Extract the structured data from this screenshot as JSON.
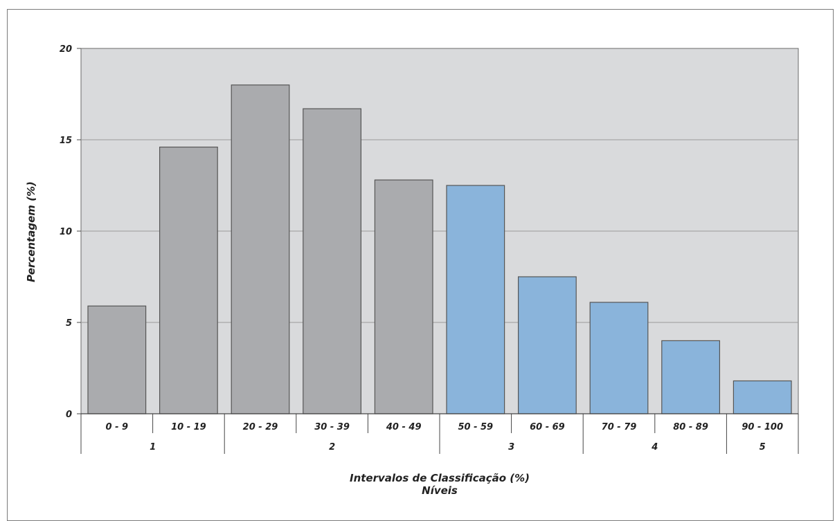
{
  "chart_data": {
    "type": "bar",
    "categories": [
      "0 - 9",
      "10 - 19",
      "20 - 29",
      "30 - 39",
      "40 - 49",
      "50 - 59",
      "60 - 69",
      "70 - 79",
      "80 - 89",
      "90 - 100"
    ],
    "values": [
      5.9,
      14.6,
      18.0,
      16.7,
      12.8,
      12.5,
      7.5,
      6.1,
      4.0,
      1.8
    ],
    "level_groups": [
      {
        "label": "1",
        "categories": [
          "0 - 9",
          "10 - 19"
        ]
      },
      {
        "label": "2",
        "categories": [
          "20 - 29",
          "30 - 39",
          "40 - 49"
        ]
      },
      {
        "label": "3",
        "categories": [
          "50 - 59",
          "60 - 69"
        ]
      },
      {
        "label": "4",
        "categories": [
          "70 - 79",
          "80 - 89"
        ]
      },
      {
        "label": "5",
        "categories": [
          "90 - 100"
        ]
      }
    ],
    "title": "",
    "xlabel": "Intervalos de Classificação (%)",
    "xlabel2": "Níveis",
    "ylabel": "Percentagem (%)",
    "ylim": [
      0,
      20
    ],
    "yticks": [
      0,
      5,
      10,
      15,
      20
    ],
    "grid": true,
    "legend": "none",
    "colors": {
      "plot_background": "#d9dadc",
      "bar_gray": "#aaabae",
      "bar_blue": "#8ab4db",
      "bar_outline": "#555555",
      "gridline": "#9a9a9a"
    },
    "bar_color_by_category": [
      "gray",
      "gray",
      "gray",
      "gray",
      "gray",
      "blue",
      "blue",
      "blue",
      "blue",
      "blue"
    ]
  }
}
